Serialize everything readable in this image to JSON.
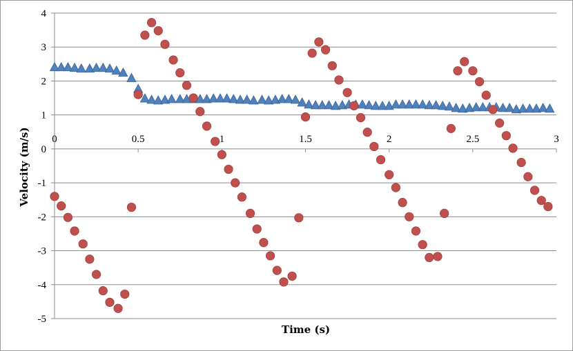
{
  "chart_data": {
    "type": "scatter",
    "title": "",
    "xlabel": "Time (s)",
    "ylabel": "Velocity (m/s)",
    "xlim": [
      0,
      3
    ],
    "ylim": [
      -5,
      4
    ],
    "x_ticks": [
      0,
      0.5,
      1,
      1.5,
      2,
      2.5,
      3
    ],
    "x_tick_labels": [
      "0",
      "0.5",
      "1",
      "1.5",
      "2",
      "2.5",
      "3"
    ],
    "y_ticks": [
      4,
      3,
      2,
      1,
      0,
      -1,
      -2,
      -3,
      -4,
      -5
    ],
    "y_tick_labels": [
      "4",
      "3",
      "2",
      "1",
      "0",
      "-1",
      "-2",
      "-3",
      "-4",
      "-5"
    ],
    "grid": "horizontal",
    "legend": "none",
    "series": [
      {
        "marker": "triangle",
        "color": "#4f81bd",
        "points": [
          [
            0.0,
            2.4
          ],
          [
            0.04,
            2.4
          ],
          [
            0.08,
            2.4
          ],
          [
            0.12,
            2.38
          ],
          [
            0.16,
            2.36
          ],
          [
            0.21,
            2.36
          ],
          [
            0.25,
            2.38
          ],
          [
            0.29,
            2.38
          ],
          [
            0.33,
            2.36
          ],
          [
            0.37,
            2.3
          ],
          [
            0.41,
            2.24
          ],
          [
            0.46,
            2.08
          ],
          [
            0.5,
            1.76
          ],
          [
            0.54,
            1.48
          ],
          [
            0.58,
            1.44
          ],
          [
            0.62,
            1.42
          ],
          [
            0.66,
            1.44
          ],
          [
            0.7,
            1.46
          ],
          [
            0.75,
            1.46
          ],
          [
            0.79,
            1.46
          ],
          [
            0.83,
            1.46
          ],
          [
            0.87,
            1.46
          ],
          [
            0.91,
            1.46
          ],
          [
            0.95,
            1.48
          ],
          [
            0.99,
            1.48
          ],
          [
            1.03,
            1.48
          ],
          [
            1.07,
            1.46
          ],
          [
            1.11,
            1.44
          ],
          [
            1.15,
            1.44
          ],
          [
            1.19,
            1.42
          ],
          [
            1.24,
            1.44
          ],
          [
            1.28,
            1.42
          ],
          [
            1.32,
            1.44
          ],
          [
            1.36,
            1.46
          ],
          [
            1.4,
            1.46
          ],
          [
            1.44,
            1.44
          ],
          [
            1.48,
            1.36
          ],
          [
            1.52,
            1.3
          ],
          [
            1.56,
            1.28
          ],
          [
            1.6,
            1.28
          ],
          [
            1.64,
            1.28
          ],
          [
            1.68,
            1.26
          ],
          [
            1.72,
            1.28
          ],
          [
            1.76,
            1.3
          ],
          [
            1.8,
            1.3
          ],
          [
            1.84,
            1.3
          ],
          [
            1.88,
            1.28
          ],
          [
            1.92,
            1.26
          ],
          [
            1.96,
            1.26
          ],
          [
            2.0,
            1.26
          ],
          [
            2.04,
            1.3
          ],
          [
            2.08,
            1.3
          ],
          [
            2.12,
            1.3
          ],
          [
            2.16,
            1.3
          ],
          [
            2.2,
            1.3
          ],
          [
            2.24,
            1.28
          ],
          [
            2.28,
            1.28
          ],
          [
            2.32,
            1.26
          ],
          [
            2.36,
            1.24
          ],
          [
            2.4,
            1.2
          ],
          [
            2.44,
            1.18
          ],
          [
            2.48,
            1.2
          ],
          [
            2.52,
            1.22
          ],
          [
            2.56,
            1.22
          ],
          [
            2.6,
            1.22
          ],
          [
            2.64,
            1.22
          ],
          [
            2.68,
            1.2
          ],
          [
            2.72,
            1.2
          ],
          [
            2.76,
            1.16
          ],
          [
            2.8,
            1.18
          ],
          [
            2.84,
            1.18
          ],
          [
            2.88,
            1.18
          ],
          [
            2.92,
            1.2
          ],
          [
            2.96,
            1.18
          ]
        ]
      },
      {
        "marker": "circle",
        "color": "#c0504d",
        "points": [
          [
            0.0,
            -1.4
          ],
          [
            0.04,
            -1.68
          ],
          [
            0.08,
            -2.02
          ],
          [
            0.12,
            -2.42
          ],
          [
            0.17,
            -2.8
          ],
          [
            0.21,
            -3.25
          ],
          [
            0.25,
            -3.7
          ],
          [
            0.29,
            -4.18
          ],
          [
            0.33,
            -4.52
          ],
          [
            0.38,
            -4.7
          ],
          [
            0.42,
            -4.28
          ],
          [
            0.46,
            -1.72
          ],
          [
            0.5,
            1.6
          ],
          [
            0.54,
            3.35
          ],
          [
            0.58,
            3.72
          ],
          [
            0.62,
            3.48
          ],
          [
            0.66,
            3.08
          ],
          [
            0.71,
            2.62
          ],
          [
            0.75,
            2.24
          ],
          [
            0.79,
            1.87
          ],
          [
            0.83,
            1.5
          ],
          [
            0.87,
            1.1
          ],
          [
            0.91,
            0.67
          ],
          [
            0.96,
            0.22
          ],
          [
            1.0,
            -0.17
          ],
          [
            1.04,
            -0.6
          ],
          [
            1.08,
            -1.0
          ],
          [
            1.12,
            -1.42
          ],
          [
            1.17,
            -1.9
          ],
          [
            1.21,
            -2.36
          ],
          [
            1.25,
            -2.76
          ],
          [
            1.29,
            -3.15
          ],
          [
            1.33,
            -3.58
          ],
          [
            1.37,
            -3.92
          ],
          [
            1.42,
            -3.75
          ],
          [
            1.46,
            -2.03
          ],
          [
            1.5,
            0.94
          ],
          [
            1.54,
            2.82
          ],
          [
            1.58,
            3.15
          ],
          [
            1.62,
            2.92
          ],
          [
            1.66,
            2.45
          ],
          [
            1.7,
            2.03
          ],
          [
            1.75,
            1.66
          ],
          [
            1.79,
            1.27
          ],
          [
            1.83,
            0.92
          ],
          [
            1.87,
            0.49
          ],
          [
            1.91,
            0.07
          ],
          [
            1.95,
            -0.32
          ],
          [
            2.0,
            -0.76
          ],
          [
            2.04,
            -1.14
          ],
          [
            2.08,
            -1.58
          ],
          [
            2.12,
            -2.0
          ],
          [
            2.16,
            -2.42
          ],
          [
            2.2,
            -2.82
          ],
          [
            2.24,
            -3.2
          ],
          [
            2.29,
            -3.17
          ],
          [
            2.33,
            -1.9
          ],
          [
            2.37,
            0.6
          ],
          [
            2.41,
            2.3
          ],
          [
            2.45,
            2.57
          ],
          [
            2.5,
            2.3
          ],
          [
            2.54,
            1.98
          ],
          [
            2.58,
            1.58
          ],
          [
            2.62,
            1.16
          ],
          [
            2.66,
            0.76
          ],
          [
            2.7,
            0.39
          ],
          [
            2.74,
            0.02
          ],
          [
            2.79,
            -0.4
          ],
          [
            2.83,
            -0.82
          ],
          [
            2.87,
            -1.22
          ],
          [
            2.91,
            -1.52
          ],
          [
            2.95,
            -1.7
          ]
        ]
      }
    ]
  }
}
